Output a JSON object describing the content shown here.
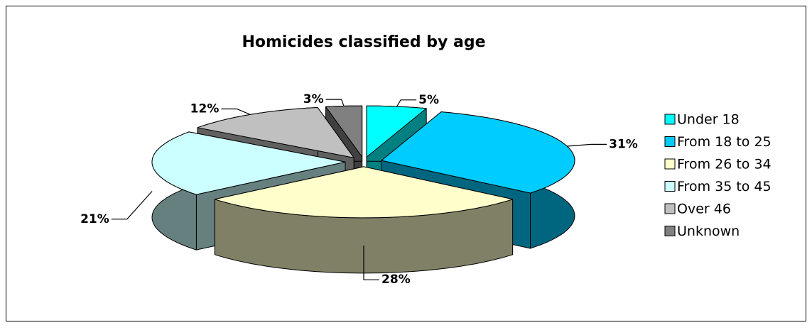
{
  "chart_data": {
    "type": "pie",
    "title": "Homicides classified by age",
    "categories": [
      "Under 18",
      "From 18 to 25",
      "From 26 to 34",
      "From 35 to 45",
      "Over 46",
      "Unknown"
    ],
    "values": [
      5,
      31,
      28,
      21,
      12,
      3
    ],
    "value_labels": [
      "5%",
      "31%",
      "28%",
      "21%",
      "12%",
      "3%"
    ],
    "colors": [
      "#00ffff",
      "#00ccff",
      "#ffffcc",
      "#ccffff",
      "#c0c0c0",
      "#808080"
    ],
    "legend": "right"
  }
}
